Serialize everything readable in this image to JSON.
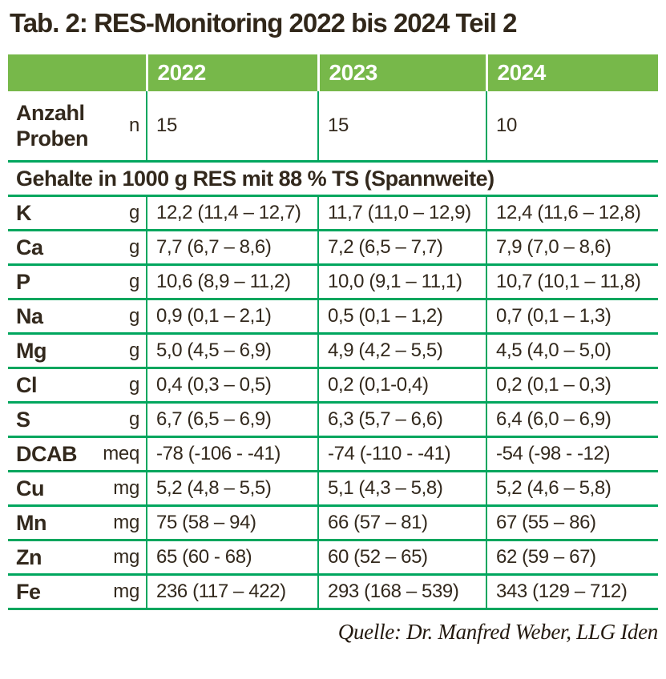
{
  "title": "Tab. 2: RES-Monitoring 2022 bis 2024 Teil 2",
  "colors": {
    "header_green": "#77b84a",
    "rule_green": "#00a65e",
    "text_brown": "#33291d"
  },
  "table": {
    "year_headers": [
      "2022",
      "2023",
      "2024"
    ],
    "anzahl": {
      "label": "Anzahl Proben",
      "unit": "n",
      "values": [
        "15",
        "15",
        "10"
      ]
    },
    "section_header": "Gehalte in 1000 g RES mit 88 % TS (Spannweite)",
    "rows": [
      {
        "name": "K",
        "unit": "g",
        "values": [
          "12,2 (11,4 – 12,7)",
          "11,7 (11,0 – 12,9)",
          "12,4 (11,6 – 12,8)"
        ]
      },
      {
        "name": "Ca",
        "unit": "g",
        "values": [
          "7,7 (6,7 – 8,6)",
          "7,2 (6,5 – 7,7)",
          "7,9 (7,0 – 8,6)"
        ]
      },
      {
        "name": "P",
        "unit": "g",
        "values": [
          "10,6 (8,9 – 11,2)",
          "10,0 (9,1 – 11,1)",
          "10,7 (10,1 – 11,8)"
        ]
      },
      {
        "name": "Na",
        "unit": "g",
        "values": [
          "0,9 (0,1 – 2,1)",
          "0,5 (0,1 – 1,2)",
          "0,7 (0,1 – 1,3)"
        ]
      },
      {
        "name": "Mg",
        "unit": "g",
        "values": [
          "5,0 (4,5 – 6,9)",
          "4,9 (4,2 – 5,5)",
          "4,5 (4,0 – 5,0)"
        ]
      },
      {
        "name": "Cl",
        "unit": "g",
        "values": [
          "0,4 (0,3 – 0,5)",
          "0,2 (0,1-0,4)",
          "0,2 (0,1 – 0,3)"
        ]
      },
      {
        "name": "S",
        "unit": "g",
        "values": [
          "6,7 (6,5 – 6,9)",
          "6,3 (5,7 – 6,6)",
          "6,4 (6,0 – 6,9)"
        ]
      },
      {
        "name": "DCAB",
        "unit": "meq",
        "values": [
          "-78 (-106 - -41)",
          "-74 (-110 - -41)",
          "-54 (-98 - -12)"
        ]
      },
      {
        "name": "Cu",
        "unit": "mg",
        "values": [
          "5,2 (4,8 – 5,5)",
          "5,1 (4,3 – 5,8)",
          "5,2 (4,6 – 5,8)"
        ]
      },
      {
        "name": "Mn",
        "unit": "mg",
        "values": [
          "75 (58 – 94)",
          "66 (57 – 81)",
          "67 (55 – 86)"
        ]
      },
      {
        "name": "Zn",
        "unit": "mg",
        "values": [
          "65 (60 - 68)",
          "60 (52 – 65)",
          "62 (59 – 67)"
        ]
      },
      {
        "name": "Fe",
        "unit": "mg",
        "values": [
          "236 (117 – 422)",
          "293 (168 – 539)",
          "343 (129 – 712)"
        ]
      }
    ]
  },
  "footer": {
    "source": "Quelle: Dr. Manfred Weber, LLG Iden"
  }
}
